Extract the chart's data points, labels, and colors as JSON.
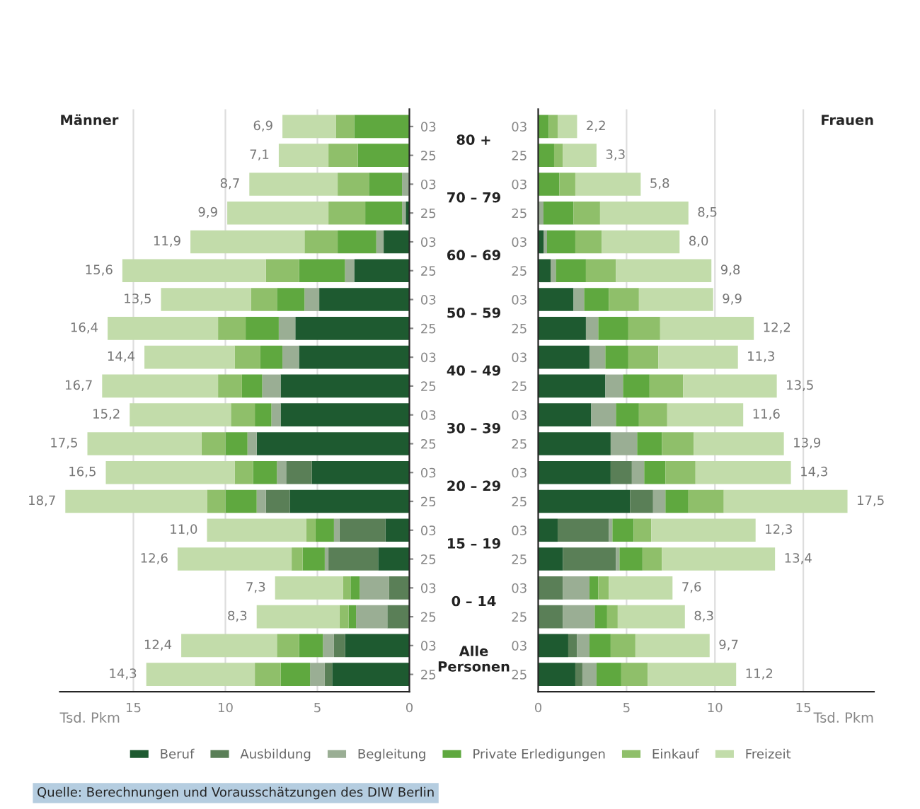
{
  "chart_data": [
    {
      "type": "bar",
      "title": "Männer",
      "orientation": "horizontal",
      "stacked": true,
      "legend": "bottom",
      "grid": "x",
      "xlabel": "Tsd. Pkm",
      "categories": [
        "03",
        "25",
        "03",
        "25",
        "03",
        "25",
        "03",
        "25",
        "03",
        "25",
        "03",
        "25",
        "03",
        "25",
        "03",
        "25",
        "03",
        "25",
        "03",
        "25"
      ],
      "xlim": [
        19,
        0
      ],
      "xticks": [
        15,
        10,
        5,
        0
      ],
      "series": [
        {
          "name": "Beruf",
          "color": "#1e5a30",
          "values": [
            0,
            0,
            0,
            0.2,
            1.4,
            3.0,
            4.9,
            6.2,
            6.0,
            7.0,
            7.0,
            8.3,
            5.3,
            6.5,
            1.3,
            1.7,
            0,
            0,
            3.5,
            4.2
          ]
        },
        {
          "name": "Ausbildung",
          "color": "#5a7f57",
          "values": [
            0,
            0,
            0,
            0,
            0,
            0,
            0,
            0,
            0,
            0,
            0,
            0,
            1.4,
            1.3,
            2.5,
            2.7,
            1.1,
            1.2,
            0.6,
            0.4
          ]
        },
        {
          "name": "Begleitung",
          "color": "#9aae94",
          "values": [
            null,
            null,
            0.4,
            0.2,
            0.4,
            0.5,
            0.8,
            0.9,
            0.9,
            1.0,
            0.5,
            0.5,
            0.5,
            0.5,
            0.3,
            0.2,
            1.6,
            1.7,
            0.6,
            0.8
          ]
        },
        {
          "name": "Private Erledigungen",
          "color": "#5fa83f",
          "values": [
            3.0,
            2.8,
            1.8,
            2.0,
            2.1,
            2.5,
            1.5,
            1.8,
            1.2,
            1.1,
            0.9,
            1.2,
            1.3,
            1.7,
            1.0,
            1.2,
            0.5,
            0.4,
            1.3,
            1.6
          ]
        },
        {
          "name": "Einkauf",
          "color": "#8fbf6a",
          "values": [
            1.0,
            1.6,
            1.7,
            2.0,
            1.8,
            1.8,
            1.4,
            1.5,
            1.4,
            1.3,
            1.3,
            1.3,
            1.0,
            1.0,
            0.5,
            0.6,
            0.4,
            0.5,
            1.2,
            1.4
          ]
        },
        {
          "name": "Freizeit",
          "color": "#c2dcaa",
          "values": [
            2.9,
            2.7,
            4.8,
            5.5,
            6.2,
            7.8,
            4.9,
            6.0,
            4.9,
            6.3,
            5.5,
            6.2,
            7.0,
            7.7,
            5.4,
            6.2,
            3.7,
            4.5,
            5.2,
            5.9
          ]
        }
      ],
      "totals": [
        "6,9",
        "7,1",
        "8,7",
        "9,9",
        "11,9",
        "15,6",
        "13,5",
        "16,4",
        "14,4",
        "16,7",
        "15,2",
        "17,5",
        "16,5",
        "18,7",
        "11,0",
        "12,6",
        "7,3",
        "8,3",
        "12,4",
        "14,3"
      ],
      "annotations": [
        "80 +",
        "70 – 79",
        "60 – 69",
        "50 – 59",
        "40 – 49",
        "30 – 39",
        "20 – 29",
        "15 – 19",
        "0 – 14",
        "Alle\nPersonen"
      ]
    },
    {
      "type": "bar",
      "title": "Frauen",
      "orientation": "horizontal",
      "stacked": true,
      "grid": "x",
      "xlabel": "Tsd. Pkm",
      "categories": [
        "03",
        "25",
        "03",
        "25",
        "03",
        "25",
        "03",
        "25",
        "03",
        "25",
        "03",
        "25",
        "03",
        "25",
        "03",
        "25",
        "03",
        "25",
        "03",
        "25"
      ],
      "xlim": [
        0,
        19
      ],
      "xticks": [
        0,
        5,
        10,
        15
      ],
      "series": [
        {
          "color": "#1e5a30",
          "values": [
            0,
            0,
            0,
            0,
            0.3,
            0.7,
            2.0,
            2.7,
            2.9,
            3.8,
            3.0,
            4.1,
            4.1,
            5.2,
            1.1,
            1.4,
            0,
            0,
            1.7,
            2.1
          ]
        },
        {
          "color": "#5a7f57",
          "values": [
            0,
            0,
            0,
            0,
            0,
            0,
            0,
            0,
            0,
            0,
            0,
            0,
            1.2,
            1.3,
            2.9,
            3.0,
            1.4,
            1.4,
            0.5,
            0.4
          ]
        },
        {
          "color": "#9aae94",
          "values": [
            0,
            0,
            0,
            0.3,
            0.2,
            0.3,
            0.6,
            0.7,
            0.9,
            1.0,
            1.4,
            1.5,
            0.7,
            0.7,
            0.2,
            0.2,
            1.5,
            1.8,
            0.7,
            0.8
          ]
        },
        {
          "color": "#5fa83f",
          "values": [
            0.6,
            0.9,
            1.2,
            1.7,
            1.6,
            1.7,
            1.4,
            1.7,
            1.3,
            1.5,
            1.3,
            1.4,
            1.2,
            1.3,
            1.2,
            1.3,
            0.5,
            0.7,
            1.2,
            1.4
          ]
        },
        {
          "color": "#8fbf6a",
          "values": [
            0.5,
            0.5,
            0.9,
            1.5,
            1.5,
            1.7,
            1.7,
            1.8,
            1.7,
            1.9,
            1.6,
            1.8,
            1.7,
            2.0,
            1.0,
            1.1,
            0.6,
            0.6,
            1.4,
            1.5
          ]
        },
        {
          "color": "#c2dcaa",
          "values": [
            1.1,
            1.9,
            3.7,
            5.0,
            4.4,
            5.4,
            4.2,
            5.3,
            4.5,
            5.3,
            4.3,
            5.1,
            5.4,
            7.0,
            5.9,
            6.4,
            3.6,
            3.8,
            4.2,
            5.0
          ]
        }
      ],
      "totals": [
        "2,2",
        "3,3",
        "5,8",
        "8,5",
        "8,0",
        "9,8",
        "9,9",
        "12,2",
        "11,3",
        "13,5",
        "11,6",
        "13,9",
        "14,3",
        "17,5",
        "12,3",
        "13,4",
        "7,6",
        "8,3",
        "9,7",
        "11,2"
      ],
      "annotations": [
        "Quelle: Berechnungen und Vorausschätzungen des DIW Berlin"
      ]
    }
  ]
}
